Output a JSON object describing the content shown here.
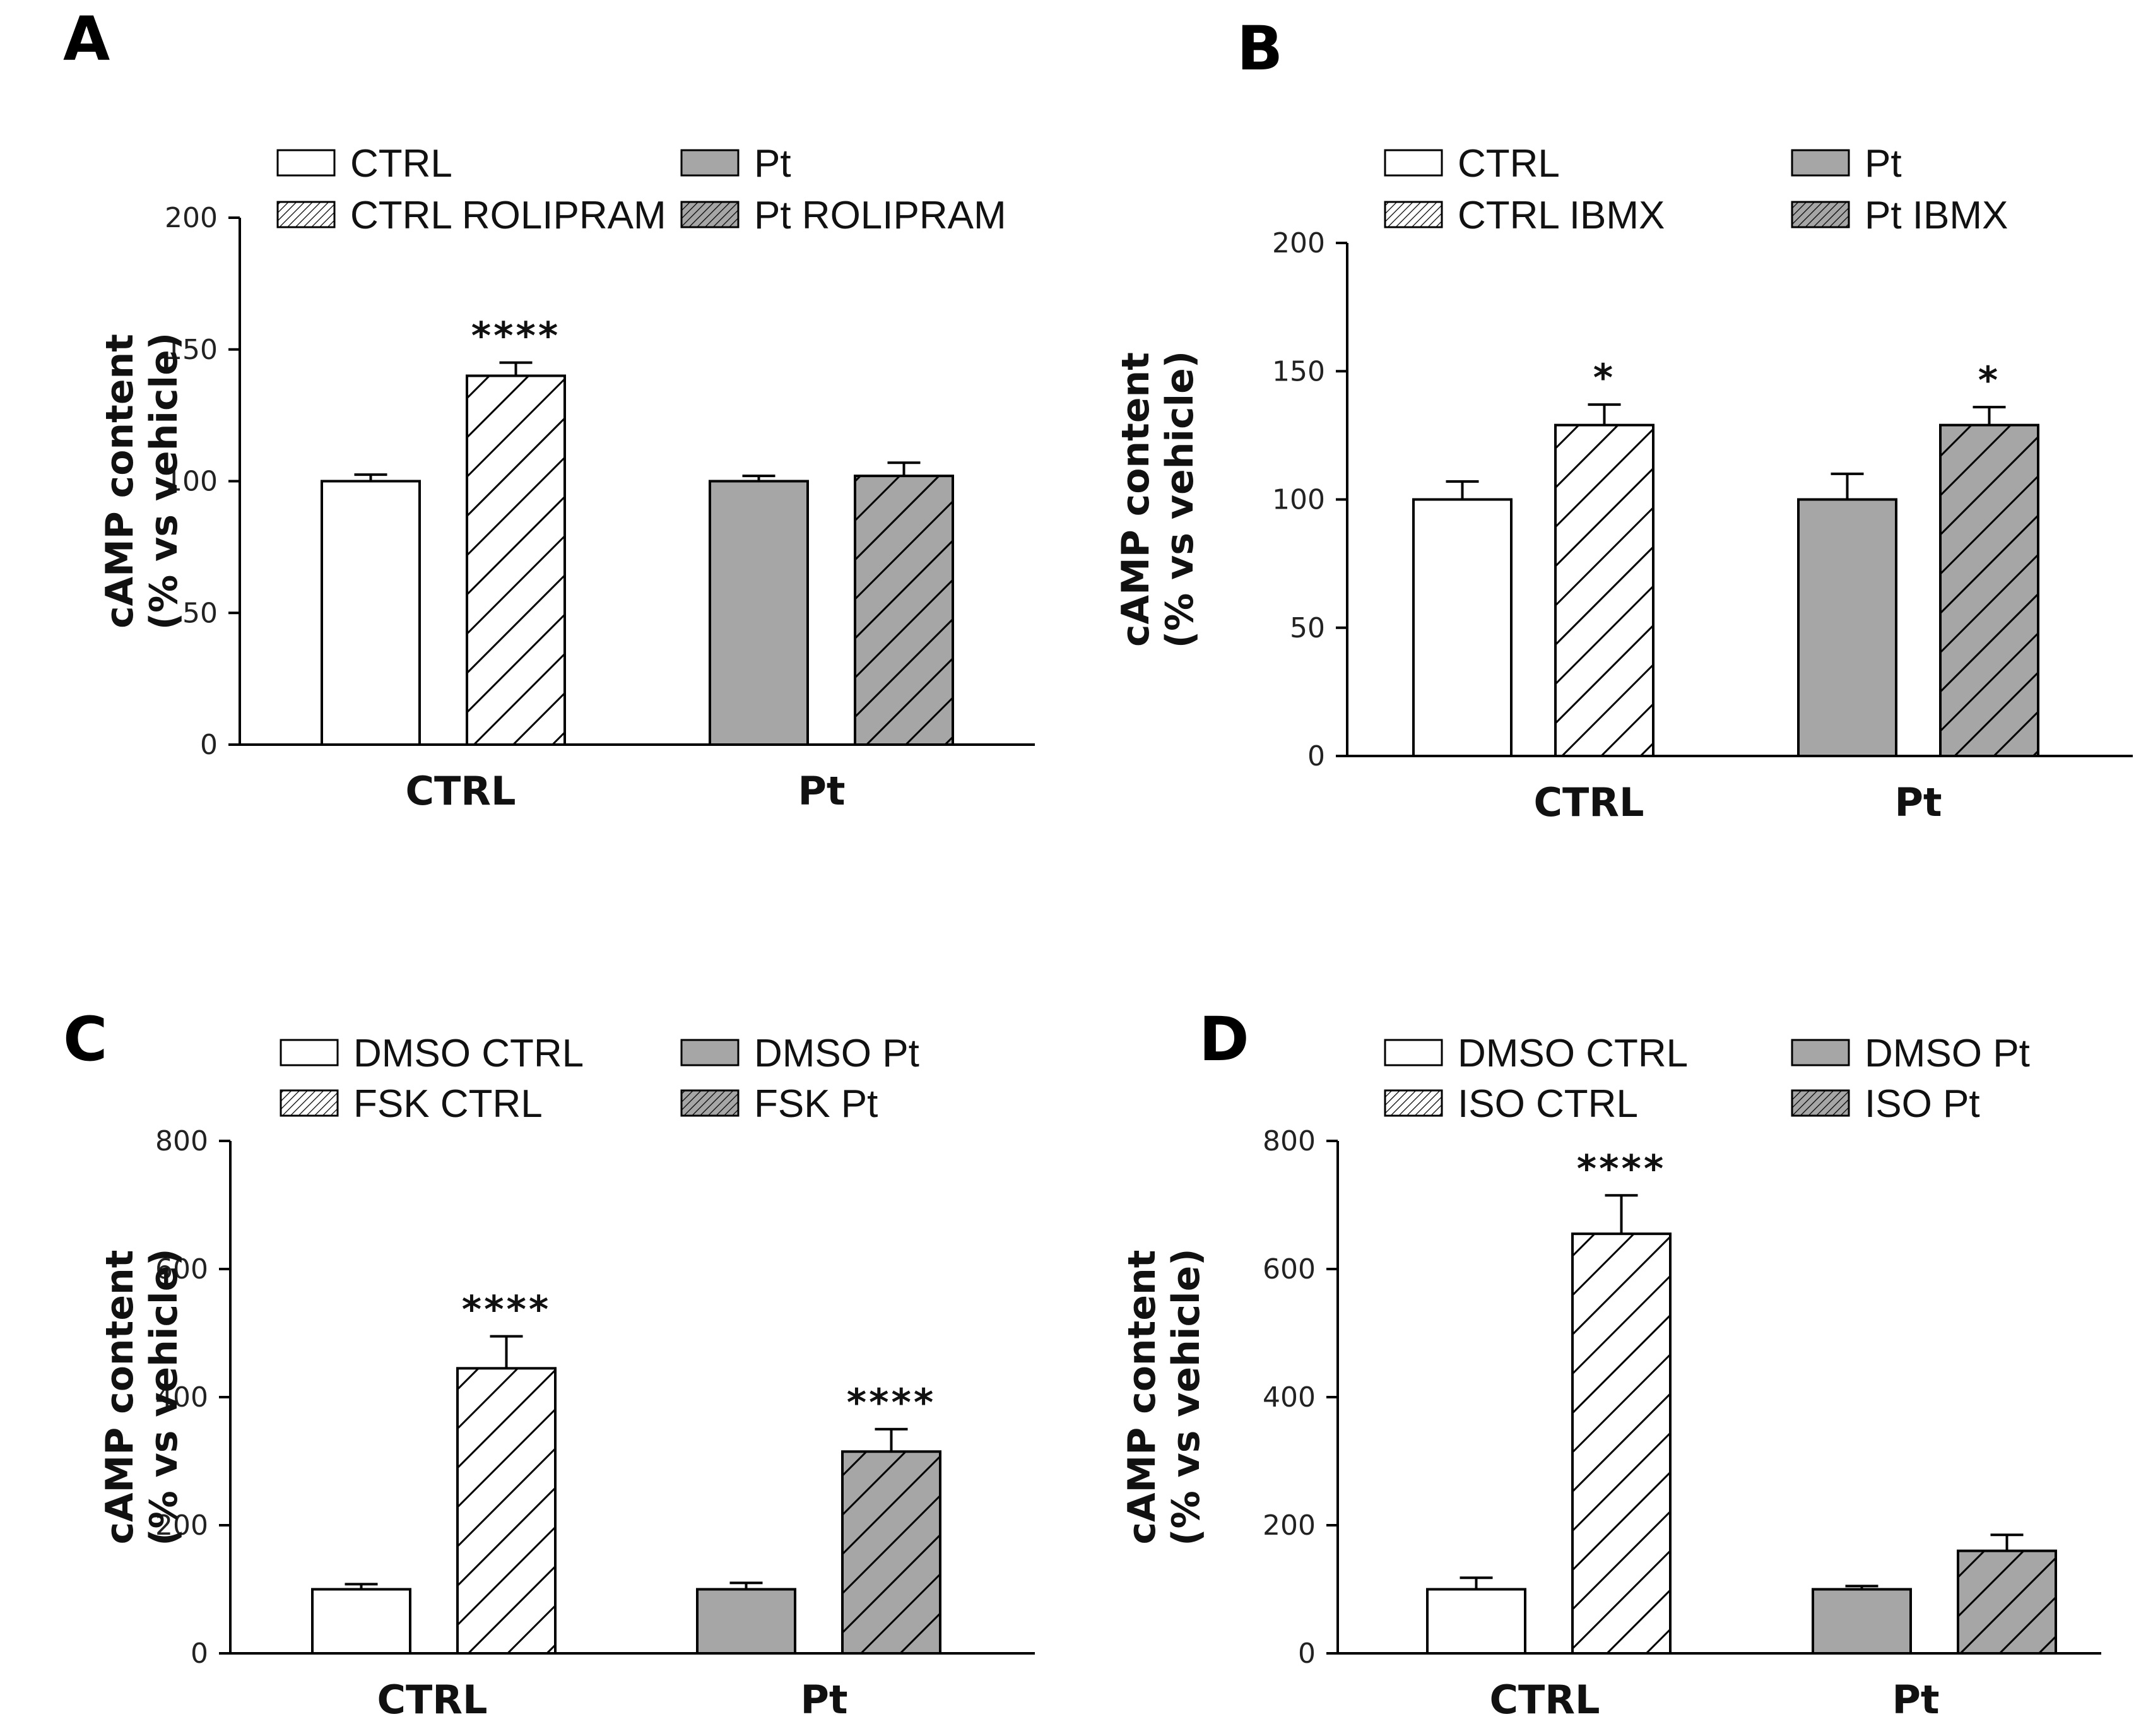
{
  "chart_data": [
    {
      "panel": "A",
      "type": "bar",
      "ylabel": [
        "cAMP content",
        "(%  vs vehicle)"
      ],
      "ylim": [
        0,
        200
      ],
      "yticks": [
        0,
        50,
        100,
        150,
        200
      ],
      "categories": [
        "CTRL",
        "Pt"
      ],
      "series": [
        {
          "name": "CTRL",
          "category": "CTRL",
          "value": 100,
          "error": 2.5,
          "fill": "#ffffff",
          "hatched": false,
          "sig": ""
        },
        {
          "name": "CTRL ROLIPRAM",
          "category": "CTRL",
          "value": 140,
          "error": 5,
          "fill": "#ffffff",
          "hatched": true,
          "sig": "****"
        },
        {
          "name": "Pt",
          "category": "Pt",
          "value": 100,
          "error": 2,
          "fill": "#a6a6a6",
          "hatched": false,
          "sig": ""
        },
        {
          "name": "Pt ROLIPRAM",
          "category": "Pt",
          "value": 102,
          "error": 5,
          "fill": "#a6a6a6",
          "hatched": true,
          "sig": ""
        }
      ]
    },
    {
      "panel": "B",
      "type": "bar",
      "ylabel": [
        "cAMP content",
        "(%  vs vehicle)"
      ],
      "ylim": [
        0,
        200
      ],
      "yticks": [
        0,
        50,
        100,
        150,
        200
      ],
      "categories": [
        "CTRL",
        "Pt"
      ],
      "series": [
        {
          "name": "CTRL",
          "category": "CTRL",
          "value": 100,
          "error": 7,
          "fill": "#ffffff",
          "hatched": false,
          "sig": ""
        },
        {
          "name": "CTRL IBMX",
          "category": "CTRL",
          "value": 129,
          "error": 8,
          "fill": "#ffffff",
          "hatched": true,
          "sig": "*"
        },
        {
          "name": "Pt",
          "category": "Pt",
          "value": 100,
          "error": 10,
          "fill": "#a6a6a6",
          "hatched": false,
          "sig": ""
        },
        {
          "name": "Pt IBMX",
          "category": "Pt",
          "value": 129,
          "error": 7,
          "fill": "#a6a6a6",
          "hatched": true,
          "sig": "*"
        }
      ]
    },
    {
      "panel": "C",
      "type": "bar",
      "ylabel": [
        "cAMP content",
        "(%  vs vehicle)"
      ],
      "ylim": [
        0,
        800
      ],
      "yticks": [
        0,
        200,
        400,
        600,
        800
      ],
      "categories": [
        "CTRL",
        "Pt"
      ],
      "series": [
        {
          "name": "DMSO CTRL",
          "category": "CTRL",
          "value": 100,
          "error": 8,
          "fill": "#ffffff",
          "hatched": false,
          "sig": ""
        },
        {
          "name": "FSK CTRL",
          "category": "CTRL",
          "value": 445,
          "error": 50,
          "fill": "#ffffff",
          "hatched": true,
          "sig": "****"
        },
        {
          "name": "DMSO Pt",
          "category": "Pt",
          "value": 100,
          "error": 10,
          "fill": "#a6a6a6",
          "hatched": false,
          "sig": ""
        },
        {
          "name": "FSK Pt",
          "category": "Pt",
          "value": 315,
          "error": 35,
          "fill": "#a6a6a6",
          "hatched": true,
          "sig": "****"
        }
      ]
    },
    {
      "panel": "D",
      "type": "bar",
      "ylabel": [
        "cAMP content",
        "(%  vs vehicle)"
      ],
      "ylim": [
        0,
        800
      ],
      "yticks": [
        0,
        200,
        400,
        600,
        800
      ],
      "categories": [
        "CTRL",
        "Pt"
      ],
      "series": [
        {
          "name": "DMSO CTRL",
          "category": "CTRL",
          "value": 100,
          "error": 18,
          "fill": "#ffffff",
          "hatched": false,
          "sig": ""
        },
        {
          "name": "ISO CTRL",
          "category": "CTRL",
          "value": 655,
          "error": 60,
          "fill": "#ffffff",
          "hatched": true,
          "sig": "****"
        },
        {
          "name": "DMSO Pt",
          "category": "Pt",
          "value": 100,
          "error": 5,
          "fill": "#a6a6a6",
          "hatched": false,
          "sig": ""
        },
        {
          "name": "ISO Pt",
          "category": "Pt",
          "value": 160,
          "error": 25,
          "fill": "#a6a6a6",
          "hatched": true,
          "sig": ""
        }
      ]
    }
  ]
}
